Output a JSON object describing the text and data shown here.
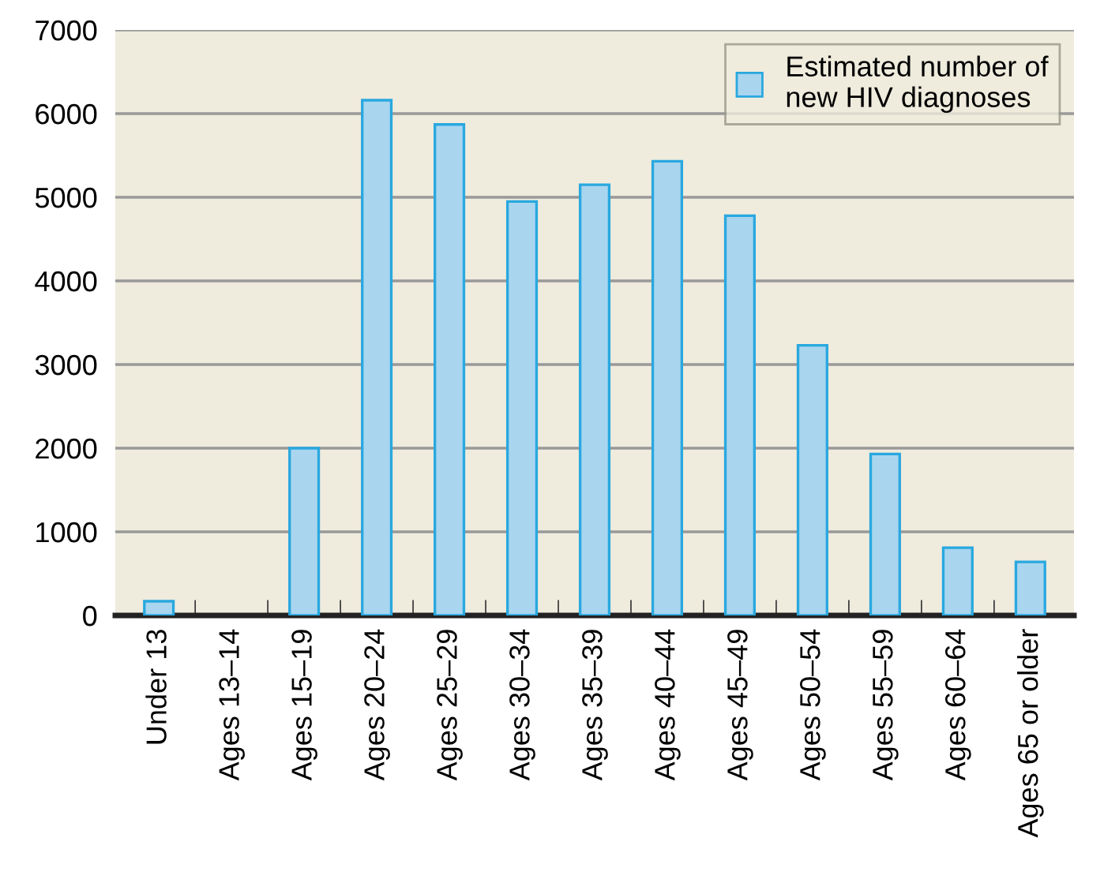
{
  "chart_data": {
    "type": "bar",
    "categories": [
      "Under 13",
      "Ages 13–14",
      "Ages 15–19",
      "Ages 20–24",
      "Ages 25–29",
      "Ages 30–34",
      "Ages 35–39",
      "Ages 40–44",
      "Ages 45–49",
      "Ages 50–54",
      "Ages 55–59",
      "Ages 60–64",
      "Ages 65 or older"
    ],
    "series": [
      {
        "name": "Estimated number of\nnew HIV diagnoses",
        "color": "#a9d5ef",
        "values": [
          170,
          null,
          2000,
          6160,
          5870,
          4950,
          5150,
          5430,
          4780,
          3230,
          1930,
          810,
          640
        ]
      }
    ],
    "ylim": [
      0,
      7000
    ],
    "yticks": [
      0,
      1000,
      2000,
      3000,
      4000,
      5000,
      6000,
      7000
    ],
    "grid": "y",
    "legend": "top right"
  }
}
